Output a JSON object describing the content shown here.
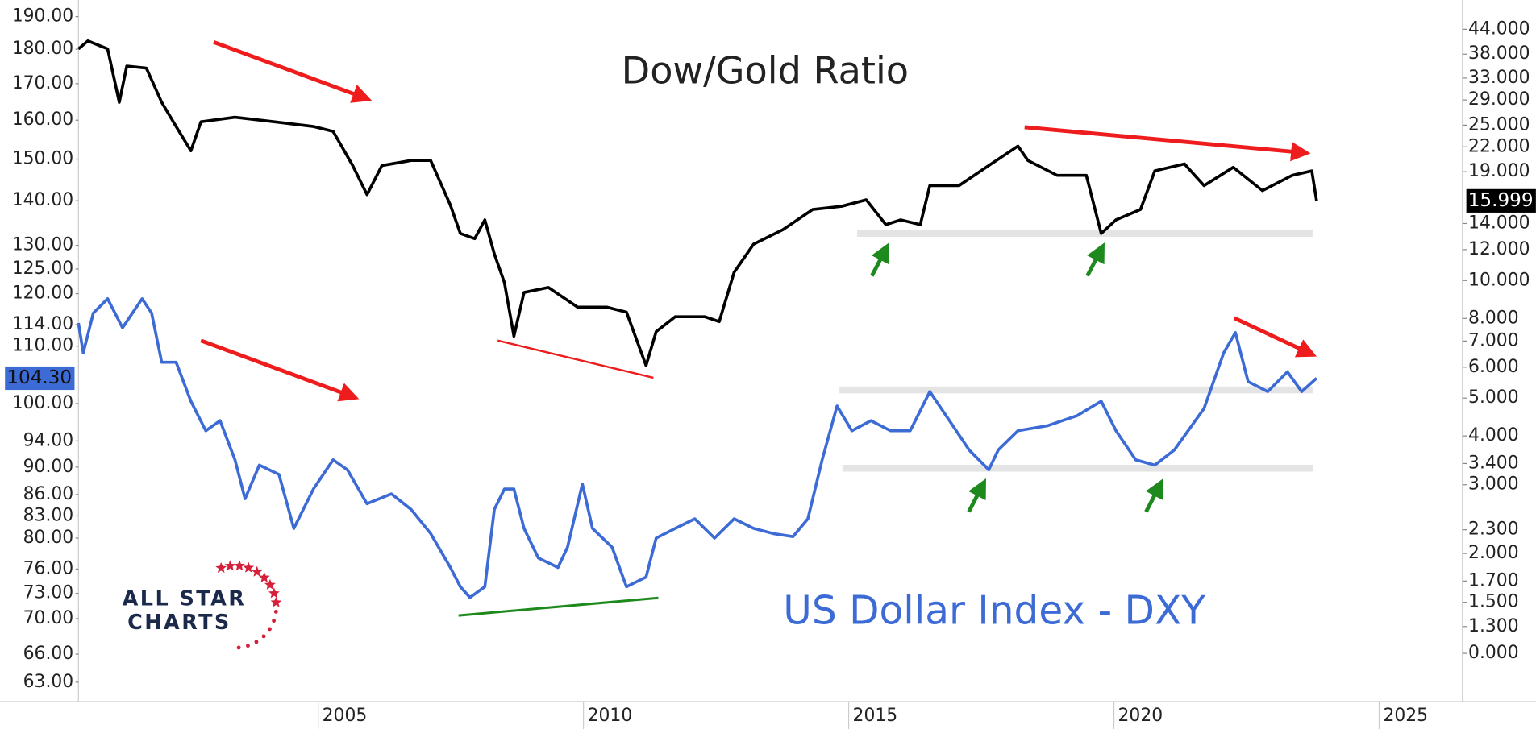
{
  "chart_data": {
    "type": "line",
    "title": "Dow/Gold Ratio",
    "subtitle": "US Dollar Index - DXY",
    "logo": [
      "ALL STAR",
      "CHARTS"
    ],
    "xlim": [
      2000.48,
      2026.57
    ],
    "xticks": [
      2005,
      2010,
      2015,
      2020,
      2025
    ],
    "ylim": [
      61.0,
      195.3
    ],
    "y_log": true,
    "yticks": [
      {
        "value": 190,
        "label": "190.00"
      },
      {
        "value": 180,
        "label": "180.00"
      },
      {
        "value": 170,
        "label": "170.00"
      },
      {
        "value": 160,
        "label": "160.00"
      },
      {
        "value": 150,
        "label": "150.00"
      },
      {
        "value": 140,
        "label": "140.00"
      },
      {
        "value": 130,
        "label": "130.00"
      },
      {
        "value": 125,
        "label": "125.00"
      },
      {
        "value": 120,
        "label": "120.00"
      },
      {
        "value": 114,
        "label": "114.00"
      },
      {
        "value": 110,
        "label": "110.00"
      },
      {
        "value": 100,
        "label": "100.00"
      },
      {
        "value": 94,
        "label": "94.00"
      },
      {
        "value": 90,
        "label": "90.00"
      },
      {
        "value": 86,
        "label": "86.00"
      },
      {
        "value": 83,
        "label": "83.00"
      },
      {
        "value": 80,
        "label": "80.00"
      },
      {
        "value": 76,
        "label": "76.00"
      },
      {
        "value": 73,
        "label": "73.00"
      },
      {
        "value": 70,
        "label": "70.00"
      },
      {
        "value": 66,
        "label": "66.00"
      },
      {
        "value": 63,
        "label": "63.00"
      }
    ],
    "y2lim": [
      0.835,
      52.3
    ],
    "y2_log": true,
    "y2ticks": [
      {
        "value": 44,
        "label": "44.000"
      },
      {
        "value": 38,
        "label": "38.000"
      },
      {
        "value": 33,
        "label": "33.000"
      },
      {
        "value": 29,
        "label": "29.000"
      },
      {
        "value": 25,
        "label": "25.000"
      },
      {
        "value": 22,
        "label": "22.000"
      },
      {
        "value": 19,
        "label": "19.000"
      },
      {
        "value": 14,
        "label": "14.000"
      },
      {
        "value": 12,
        "label": "12.000"
      },
      {
        "value": 10,
        "label": "10.000"
      },
      {
        "value": 8,
        "label": "8.000"
      },
      {
        "value": 7,
        "label": "7.000"
      },
      {
        "value": 6,
        "label": "6.000"
      },
      {
        "value": 5,
        "label": "5.000"
      },
      {
        "value": 4,
        "label": "4.000"
      },
      {
        "value": 3.4,
        "label": "3.400"
      },
      {
        "value": 3,
        "label": "3.000"
      },
      {
        "value": 2.3,
        "label": "2.300"
      },
      {
        "value": 2,
        "label": "2.000"
      },
      {
        "value": 1.7,
        "label": "1.700"
      },
      {
        "value": 1.5,
        "label": "1.500"
      },
      {
        "value": 1.3,
        "label": "1.300"
      },
      {
        "value": 1.11,
        "label": "0.000"
      }
    ],
    "series": [
      {
        "name": "Dow/Gold Ratio",
        "color": "#000000",
        "axis": "y2",
        "x": [
          2000.48,
          2000.66,
          2001.03,
          2001.25,
          2001.39,
          2001.76,
          2002.05,
          2002.32,
          2002.6,
          2002.79,
          2003.43,
          2004.17,
          2004.91,
          2005.28,
          2005.65,
          2005.92,
          2006.2,
          2006.75,
          2007.12,
          2007.49,
          2007.68,
          2007.95,
          2008.14,
          2008.32,
          2008.51,
          2008.69,
          2008.88,
          2009.34,
          2009.89,
          2010.44,
          2010.81,
          2011.18,
          2011.37,
          2011.73,
          2012.29,
          2012.56,
          2012.84,
          2013.21,
          2013.76,
          2014.32,
          2014.87,
          2015.33,
          2015.7,
          2015.98,
          2016.35,
          2016.53,
          2017.08,
          2017.64,
          2018.19,
          2018.38,
          2018.93,
          2019.48,
          2019.76,
          2020.04,
          2020.5,
          2020.77,
          2021.33,
          2021.7,
          2022.25,
          2022.8,
          2023.36,
          2023.73,
          2023.82
        ],
        "values": [
          39.2,
          41.1,
          39.2,
          28.6,
          35.4,
          35.0,
          28.6,
          24.8,
          21.5,
          25.5,
          26.2,
          25.5,
          24.8,
          24.1,
          19.7,
          16.6,
          19.7,
          20.3,
          20.3,
          15.6,
          13.2,
          12.8,
          14.3,
          11.7,
          9.88,
          7.2,
          9.32,
          9.6,
          8.55,
          8.55,
          8.3,
          6.06,
          7.4,
          8.08,
          8.08,
          7.85,
          10.5,
          12.4,
          13.5,
          15.2,
          15.5,
          16.1,
          13.9,
          14.3,
          13.9,
          17.5,
          17.5,
          19.7,
          22.1,
          20.3,
          18.6,
          18.6,
          13.2,
          14.3,
          15.2,
          19.1,
          19.9,
          17.5,
          19.5,
          17.0,
          18.6,
          19.1,
          15.999
        ]
      },
      {
        "name": "US Dollar Index - DXY",
        "color": "#3d6bd6",
        "axis": "y",
        "x": [
          2000.48,
          2000.57,
          2000.76,
          2001.03,
          2001.31,
          2001.68,
          2001.86,
          2002.05,
          2002.32,
          2002.6,
          2002.88,
          2003.15,
          2003.43,
          2003.62,
          2003.89,
          2004.26,
          2004.54,
          2004.91,
          2005.28,
          2005.55,
          2005.92,
          2006.38,
          2006.75,
          2007.12,
          2007.49,
          2007.68,
          2007.86,
          2008.14,
          2008.32,
          2008.51,
          2008.69,
          2008.88,
          2009.15,
          2009.52,
          2009.7,
          2009.98,
          2010.17,
          2010.54,
          2010.81,
          2011.18,
          2011.37,
          2011.73,
          2012.1,
          2012.47,
          2012.84,
          2013.21,
          2013.58,
          2013.95,
          2014.23,
          2014.5,
          2014.78,
          2015.06,
          2015.42,
          2015.79,
          2016.16,
          2016.53,
          2016.9,
          2017.27,
          2017.64,
          2017.82,
          2018.19,
          2018.75,
          2019.3,
          2019.76,
          2020.04,
          2020.41,
          2020.77,
          2021.14,
          2021.7,
          2022.07,
          2022.29,
          2022.53,
          2022.9,
          2023.27,
          2023.54,
          2023.82
        ],
        "values": [
          114.3,
          108.8,
          116.2,
          119.0,
          113.4,
          119.0,
          116.2,
          107.1,
          107.1,
          100.4,
          95.6,
          97.2,
          91.1,
          85.4,
          90.3,
          88.9,
          81.3,
          86.8,
          91.1,
          89.6,
          84.7,
          86.1,
          83.9,
          80.6,
          76.2,
          73.8,
          72.5,
          73.8,
          83.9,
          86.8,
          86.8,
          81.3,
          77.4,
          76.2,
          78.8,
          87.5,
          81.3,
          78.8,
          73.8,
          75.0,
          80.0,
          81.3,
          82.6,
          80.0,
          82.6,
          81.3,
          80.6,
          80.2,
          82.6,
          91.1,
          99.6,
          95.6,
          97.2,
          95.6,
          95.6,
          102.0,
          97.2,
          92.6,
          89.6,
          92.6,
          95.6,
          96.4,
          98.0,
          100.4,
          95.6,
          91.1,
          90.3,
          92.6,
          99.2,
          108.8,
          112.5,
          103.7,
          102.0,
          105.4,
          102.0,
          104.3
        ],
        "value_labels": [
          null,
          null,
          null,
          null,
          null,
          null,
          null,
          null,
          null,
          null,
          null,
          null,
          null,
          null,
          null,
          null,
          null,
          null,
          null,
          null,
          null,
          null,
          null,
          null,
          null,
          null,
          null,
          null,
          null,
          null,
          null,
          null,
          null,
          null,
          null,
          null,
          null,
          null,
          null,
          null,
          null,
          null,
          null,
          null,
          null,
          null,
          null,
          null,
          null,
          null,
          null,
          null,
          null,
          null,
          null,
          null,
          null,
          null,
          null,
          null,
          null,
          null,
          null,
          null,
          null,
          null,
          null,
          null,
          null,
          null,
          null,
          null,
          null,
          null,
          null,
          "104.30"
        ]
      }
    ]
  }
}
